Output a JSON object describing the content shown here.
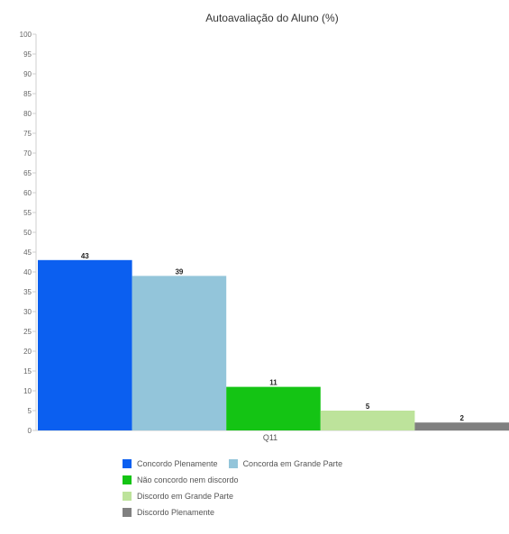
{
  "chart_data": {
    "type": "bar",
    "title": "Autoavaliação do Aluno (%)",
    "categories": [
      "Q11"
    ],
    "series": [
      {
        "name": "Concordo Plenamente",
        "values": [
          43
        ],
        "color": "#0b5ff0"
      },
      {
        "name": "Concorda em Grande Parte",
        "values": [
          39
        ],
        "color": "#93c5da"
      },
      {
        "name": "Não concordo nem discordo",
        "values": [
          11
        ],
        "color": "#14c414"
      },
      {
        "name": "Discordo em Grande Parte",
        "values": [
          5
        ],
        "color": "#bde39b"
      },
      {
        "name": "Discordo Plenamente",
        "values": [
          2
        ],
        "color": "#808080"
      }
    ],
    "data_labels": [
      "43",
      "39",
      "11",
      "5",
      "2"
    ],
    "ylim": [
      0,
      100
    ],
    "yticks": [
      "100",
      "95",
      "90",
      "85",
      "80",
      "75",
      "70",
      "65",
      "60",
      "55",
      "50",
      "45",
      "40",
      "35",
      "30",
      "25",
      "20",
      "15",
      "10",
      "5",
      "0"
    ],
    "xlabel": "",
    "ylabel": "",
    "grid": false,
    "legend_position": "bottom"
  }
}
